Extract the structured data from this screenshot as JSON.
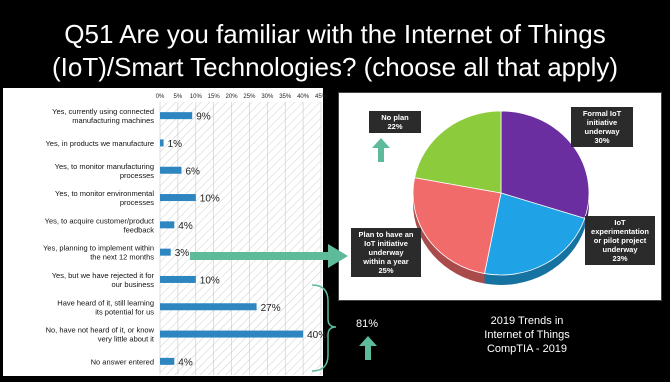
{
  "title_line1": "Q51 Are you familiar with the Internet of Things",
  "title_line2": "(IoT)/Smart Technologies? (choose all that apply)",
  "chart_data": [
    {
      "type": "bar",
      "orientation": "horizontal",
      "categories": [
        "Yes, currently using connected manufacturing machines",
        "Yes, in products we manufacture",
        "Yes, to monitor manufacturing processes",
        "Yes, to monitor environmental processes",
        "Yes, to acquire customer/product feedback",
        "Yes, planning to implement within the next 12 months",
        "Yes, but we have rejected it for our business",
        "Have heard of it, still learning its potential for us",
        "No, have not heard of it, or know very little about it",
        "No answer entered"
      ],
      "values": [
        9,
        1,
        6,
        10,
        4,
        3,
        10,
        27,
        40,
        4
      ],
      "value_labels": [
        "9%",
        "1%",
        "6%",
        "10%",
        "4%",
        "3%",
        "10%",
        "27%",
        "40%",
        "4%"
      ],
      "xticks": [
        "0%",
        "5%",
        "10%",
        "15%",
        "20%",
        "25%",
        "30%",
        "35%",
        "40%",
        "45%"
      ],
      "xlim": [
        0,
        45
      ],
      "bar_color": "#2E86C1"
    },
    {
      "type": "pie",
      "slices": [
        {
          "label": "Formal IoT initiative underway",
          "value": 30,
          "pct": "30%",
          "color": "#6A2EA0"
        },
        {
          "label": "IoT experimentation or pilot project underway",
          "value": 23,
          "pct": "23%",
          "color": "#1FA3E6"
        },
        {
          "label": "Plan to have an IoT initiative underway within a year",
          "value": 25,
          "pct": "25%",
          "color": "#F26B6B"
        },
        {
          "label": "No plan",
          "value": 22,
          "pct": "22%",
          "color": "#8CCB3C"
        }
      ]
    }
  ],
  "callouts": {
    "no_plan": [
      "No plan",
      "22%"
    ],
    "formal": [
      "Formal IoT",
      "initiative",
      "underway",
      "30%"
    ],
    "experimentation": [
      "IoT",
      "experimentation",
      "or pilot project",
      "underway",
      "23%"
    ],
    "plan": [
      "Plan to have an",
      "IoT initiative",
      "underway",
      "within a year",
      "25%"
    ]
  },
  "bracket_total": "81%",
  "footer": [
    "2019 Trends in",
    "Internet of Things",
    "CompTIA - 2019"
  ],
  "colors": {
    "arrow": "#5DBB9A",
    "bar": "#2E86C1"
  }
}
